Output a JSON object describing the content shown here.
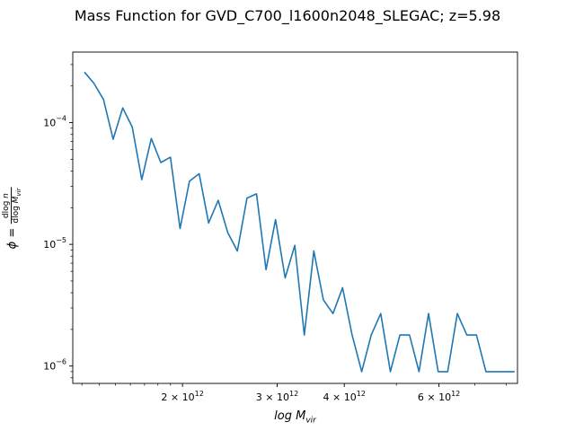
{
  "chart_data": {
    "type": "line",
    "title": "Mass Function for GVD_C700_l1600n2048_SLEGAC; z=5.98",
    "xlabel": "log M_vir",
    "ylabel": "φ = dlog n / dlog M_vir",
    "xscale": "log",
    "yscale": "log",
    "xlim": [
      1250000000000.0,
      8400000000000.0
    ],
    "ylim": [
      7.2e-07,
      0.00038
    ],
    "grid": false,
    "color": "#1f77b4",
    "x_ticks": [
      {
        "value": 2000000000000.0,
        "label": "2 × 10^12"
      },
      {
        "value": 3000000000000.0,
        "label": "3 × 10^12"
      },
      {
        "value": 4000000000000.0,
        "label": "4 × 10^12"
      },
      {
        "value": 6000000000000.0,
        "label": "6 × 10^12"
      }
    ],
    "y_ticks": [
      {
        "value": 1e-06,
        "label": "10^−6"
      },
      {
        "value": 1e-05,
        "label": "10^−5"
      },
      {
        "value": 0.0001,
        "label": "10^−4"
      }
    ],
    "series": [
      {
        "x": [
          1314000000000.0,
          1369000000000.0,
          1426000000000.0,
          1486000000000.0,
          1548000000000.0,
          1613000000000.0,
          1680000000000.0,
          1750000000000.0,
          1823000000000.0,
          1899000000000.0,
          1979000000000.0,
          2061000000000.0,
          2148000000000.0,
          2237000000000.0,
          2331000000000.0,
          2428000000000.0,
          2530000000000.0,
          2636000000000.0,
          2746000000000.0,
          2861000000000.0,
          2980000000000.0,
          3105000000000.0,
          3235000000000.0,
          3370000000000.0,
          3511000000000.0,
          3657000000000.0,
          3810000000000.0,
          3970000000000.0,
          4136000000000.0,
          4309000000000.0,
          4489000000000.0,
          4676000000000.0,
          4872000000000.0,
          5076000000000.0,
          5288000000000.0,
          5509000000000.0,
          5739000000000.0,
          5979000000000.0,
          6229000000000.0,
          6490000000000.0,
          6761000000000.0,
          7044000000000.0,
          7338000000000.0,
          7645000000000.0,
          7965000000000.0,
          8298000000000.0
        ],
        "values": [
          0.00026,
          0.00021,
          0.000155,
          7.3e-05,
          0.000132,
          9.2e-05,
          3.4e-05,
          7.4e-05,
          4.7e-05,
          5.2e-05,
          1.35e-05,
          3.3e-05,
          3.8e-05,
          1.5e-05,
          2.3e-05,
          1.25e-05,
          8.8e-06,
          2.4e-05,
          2.6e-05,
          6.2e-06,
          1.6e-05,
          5.3e-06,
          9.8e-06,
          1.8e-06,
          8.8e-06,
          3.5e-06,
          2.7e-06,
          4.4e-06,
          1.8e-06,
          9e-07,
          1.8e-06,
          2.7e-06,
          9e-07,
          1.8e-06,
          1.8e-06,
          9e-07,
          2.7e-06,
          9e-07,
          9e-07,
          2.7e-06,
          1.8e-06,
          1.8e-06,
          9e-07,
          9e-07,
          9e-07,
          9e-07
        ]
      }
    ]
  }
}
